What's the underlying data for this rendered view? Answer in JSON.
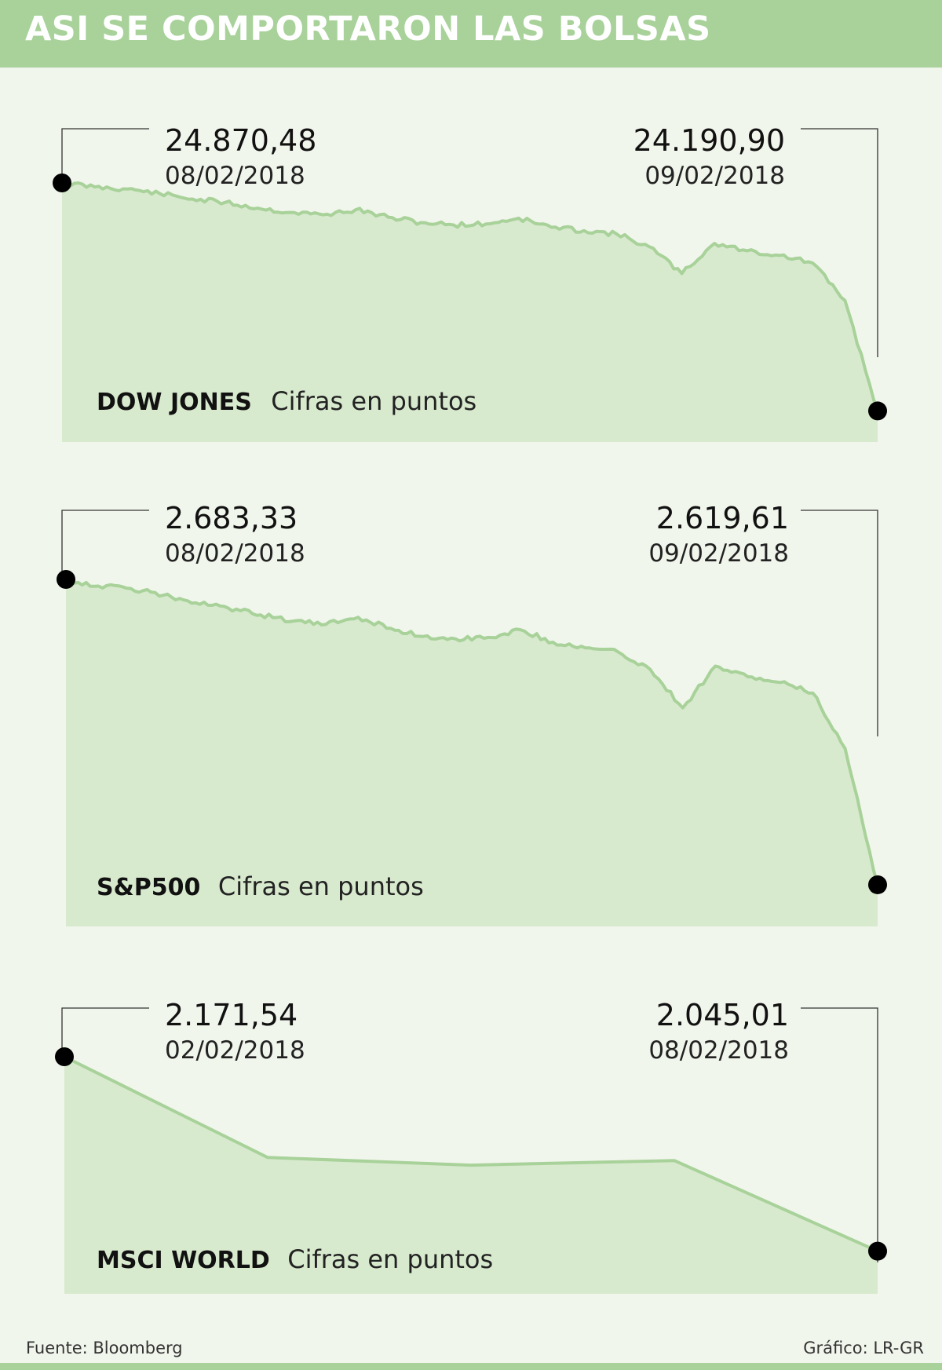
{
  "header": {
    "title": "ASI SE COMPORTARON LAS BOLSAS"
  },
  "footer": {
    "source": "Fuente: Bloomberg",
    "credit": "Gráfico: LR-GR"
  },
  "colors": {
    "header": "#a8d29a",
    "area": "#d8eace",
    "line": "#a8d29a",
    "marker": "#000000",
    "background": "#f1f6ec"
  },
  "chart_data": [
    {
      "type": "area",
      "name": "DOW JONES",
      "unit": "Cifras en puntos",
      "start": {
        "value": "24.870,48",
        "date": "08/02/2018"
      },
      "end": {
        "value": "24.190,90",
        "date": "09/02/2018"
      },
      "x": [
        0,
        4,
        8,
        12,
        16,
        20,
        24,
        28,
        32,
        36,
        40,
        44,
        48,
        52,
        56,
        60,
        64,
        68,
        72,
        76,
        80,
        84,
        88,
        92,
        96,
        100
      ],
      "y": [
        24870,
        24858,
        24852,
        24838,
        24822,
        24812,
        24795,
        24782,
        24775,
        24790,
        24768,
        24752,
        24745,
        24748,
        24765,
        24738,
        24728,
        24718,
        24680,
        24600,
        24690,
        24668,
        24654,
        24632,
        24520,
        24191
      ]
    },
    {
      "type": "area",
      "name": "S&P500",
      "unit": "Cifras en puntos",
      "start": {
        "value": "2.683,33",
        "date": "08/02/2018"
      },
      "end": {
        "value": "2.619,61",
        "date": "09/02/2018"
      },
      "x": [
        0,
        4,
        8,
        12,
        16,
        20,
        24,
        28,
        32,
        36,
        40,
        44,
        48,
        52,
        56,
        60,
        64,
        68,
        72,
        76,
        80,
        84,
        88,
        92,
        96,
        100
      ],
      "y": [
        2683.3,
        2681.9,
        2681.4,
        2680.0,
        2678.4,
        2677.3,
        2675.9,
        2674.6,
        2673.9,
        2675.4,
        2673.1,
        2671.4,
        2670.9,
        2671.2,
        2672.8,
        2670.2,
        2669.0,
        2668.2,
        2664.5,
        2656.5,
        2665.2,
        2663.0,
        2661.8,
        2659.6,
        2648.0,
        2619.6
      ]
    },
    {
      "type": "line",
      "name": "MSCI WORLD",
      "unit": "Cifras en puntos",
      "start": {
        "value": "2.171,54",
        "date": "02/02/2018"
      },
      "end": {
        "value": "2.045,01",
        "date": "08/02/2018"
      },
      "x": [
        0,
        1,
        2,
        3,
        4
      ],
      "y": [
        2171.54,
        2106,
        2101,
        2104,
        2045.01
      ]
    }
  ]
}
